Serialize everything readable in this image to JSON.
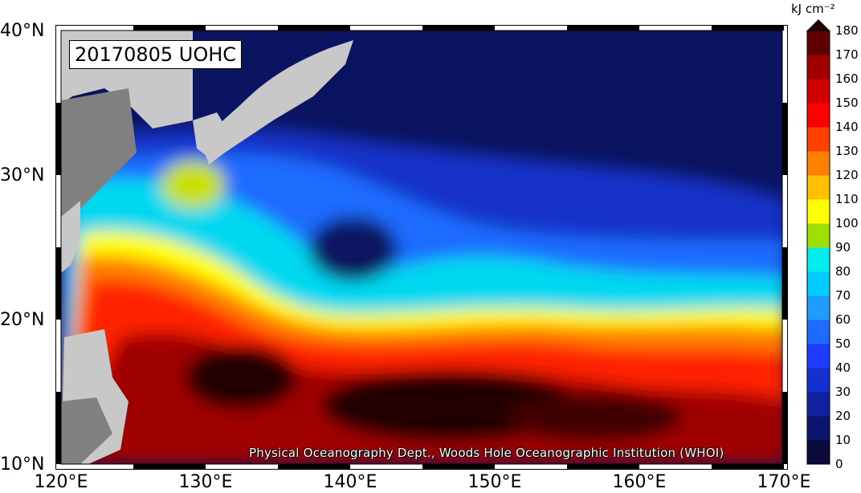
{
  "title": "20170805 UOHC",
  "credit": "Physical Oceanography Dept., Woods Hole Oceanographic Institution (WHOI)",
  "lat_labels": [
    "40°N",
    "30°N",
    "20°N",
    "10°N"
  ],
  "lon_labels": [
    "120°E",
    "130°E",
    "140°E",
    "150°E",
    "160°E",
    "170°E"
  ],
  "colorbar": {
    "unit": "kJ cm⁻²",
    "ticks": [
      "180",
      "170",
      "160",
      "150",
      "140",
      "130",
      "120",
      "110",
      "100",
      "90",
      "80",
      "70",
      "60",
      "50",
      "40",
      "30",
      "20",
      "10",
      "0"
    ],
    "colors": [
      "#0a0a3c",
      "#0d1470",
      "#1020a0",
      "#1530d0",
      "#1e3cff",
      "#1e6cff",
      "#1e9cff",
      "#00ccff",
      "#00eeee",
      "#a0e000",
      "#ffff00",
      "#ffc000",
      "#ff8000",
      "#ff4000",
      "#ff0000",
      "#d00000",
      "#a00000",
      "#600000",
      "#200000"
    ]
  },
  "map_colors": {
    "deep_blue": "#0b1460",
    "blue": "#1530c8",
    "mid_blue": "#1e6cff",
    "cyan": "#00d8f0",
    "yellow_green": "#c8e000",
    "yellow": "#ffff00",
    "orange": "#ff8000",
    "red": "#ff2000",
    "dark_red": "#a00000",
    "black_red": "#200000",
    "land": "#c8c8c8",
    "land_dark": "#808080"
  }
}
